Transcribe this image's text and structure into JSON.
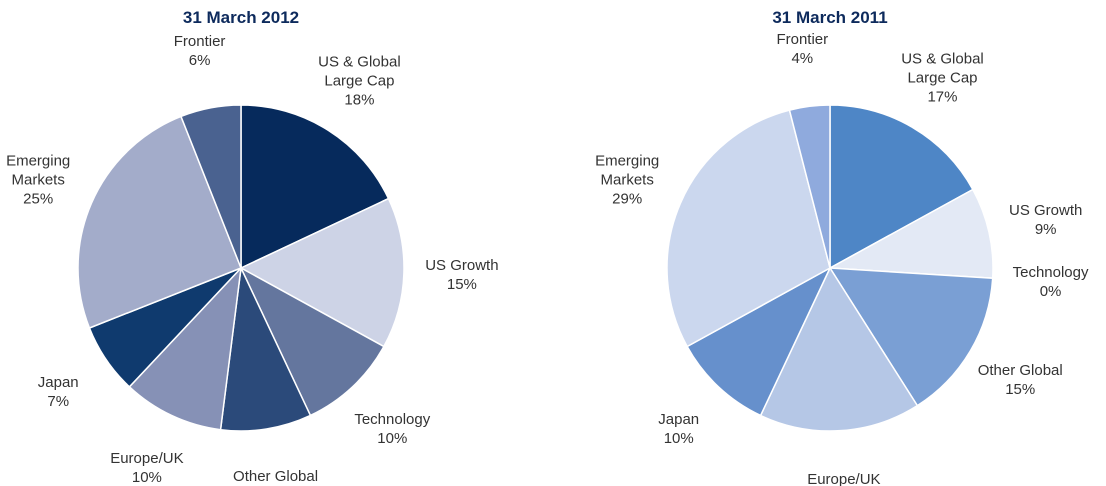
{
  "chart_data": [
    {
      "type": "pie",
      "title": "31 March 2012",
      "categories": [
        "US & Global Large Cap",
        "US Growth",
        "Technology",
        "Other Global",
        "Europe/UK",
        "Japan",
        "Emerging Markets",
        "Frontier"
      ],
      "values": [
        18,
        15,
        10,
        9,
        10,
        7,
        25,
        6
      ],
      "value_labels": [
        "18%",
        "15%",
        "10%",
        "9%",
        "10%",
        "7%",
        "25%",
        "6%"
      ],
      "colors": [
        "#062a5c",
        "#cdd3e6",
        "#64769e",
        "#2b4a7a",
        "#8691b6",
        "#0f3a6e",
        "#a3acca",
        "#4a6290"
      ]
    },
    {
      "type": "pie",
      "title": "31 March 2011",
      "categories": [
        "US & Global Large Cap",
        "US Growth",
        "Technology",
        "Other Global",
        "Europe/UK",
        "Japan",
        "Emerging Markets",
        "Frontier"
      ],
      "values": [
        17,
        9,
        0,
        15,
        16,
        10,
        29,
        4
      ],
      "value_labels": [
        "17%",
        "9%",
        "0%",
        "15%",
        "16%",
        "10%",
        "29%",
        "4%"
      ],
      "colors": [
        "#4e86c6",
        "#e3e9f5",
        "#7a9fd4",
        "#7a9fd4",
        "#b5c7e6",
        "#6690cc",
        "#cbd7ee",
        "#8faadd"
      ]
    }
  ]
}
